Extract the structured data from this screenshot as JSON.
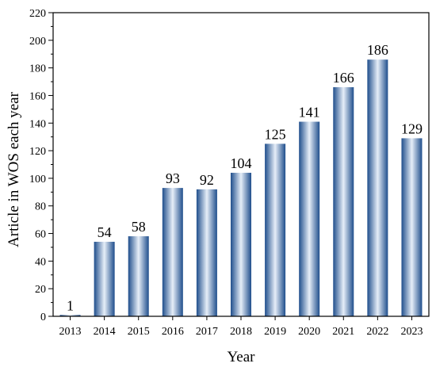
{
  "chart_data": {
    "type": "bar",
    "title": "",
    "xlabel": "Year",
    "ylabel": "Article in WOS each year",
    "categories": [
      "2013",
      "2014",
      "2015",
      "2016",
      "2017",
      "2018",
      "2019",
      "2020",
      "2021",
      "2022",
      "2023"
    ],
    "values": [
      1,
      54,
      58,
      93,
      92,
      104,
      125,
      141,
      166,
      186,
      129
    ],
    "ylim": [
      0,
      220
    ],
    "yticks": [
      0,
      20,
      40,
      60,
      80,
      100,
      120,
      140,
      160,
      180,
      200,
      220
    ],
    "grid": false,
    "legend": "none",
    "bar_color_dark": "#1f4e8c",
    "bar_color_light": "#e6eef8"
  }
}
